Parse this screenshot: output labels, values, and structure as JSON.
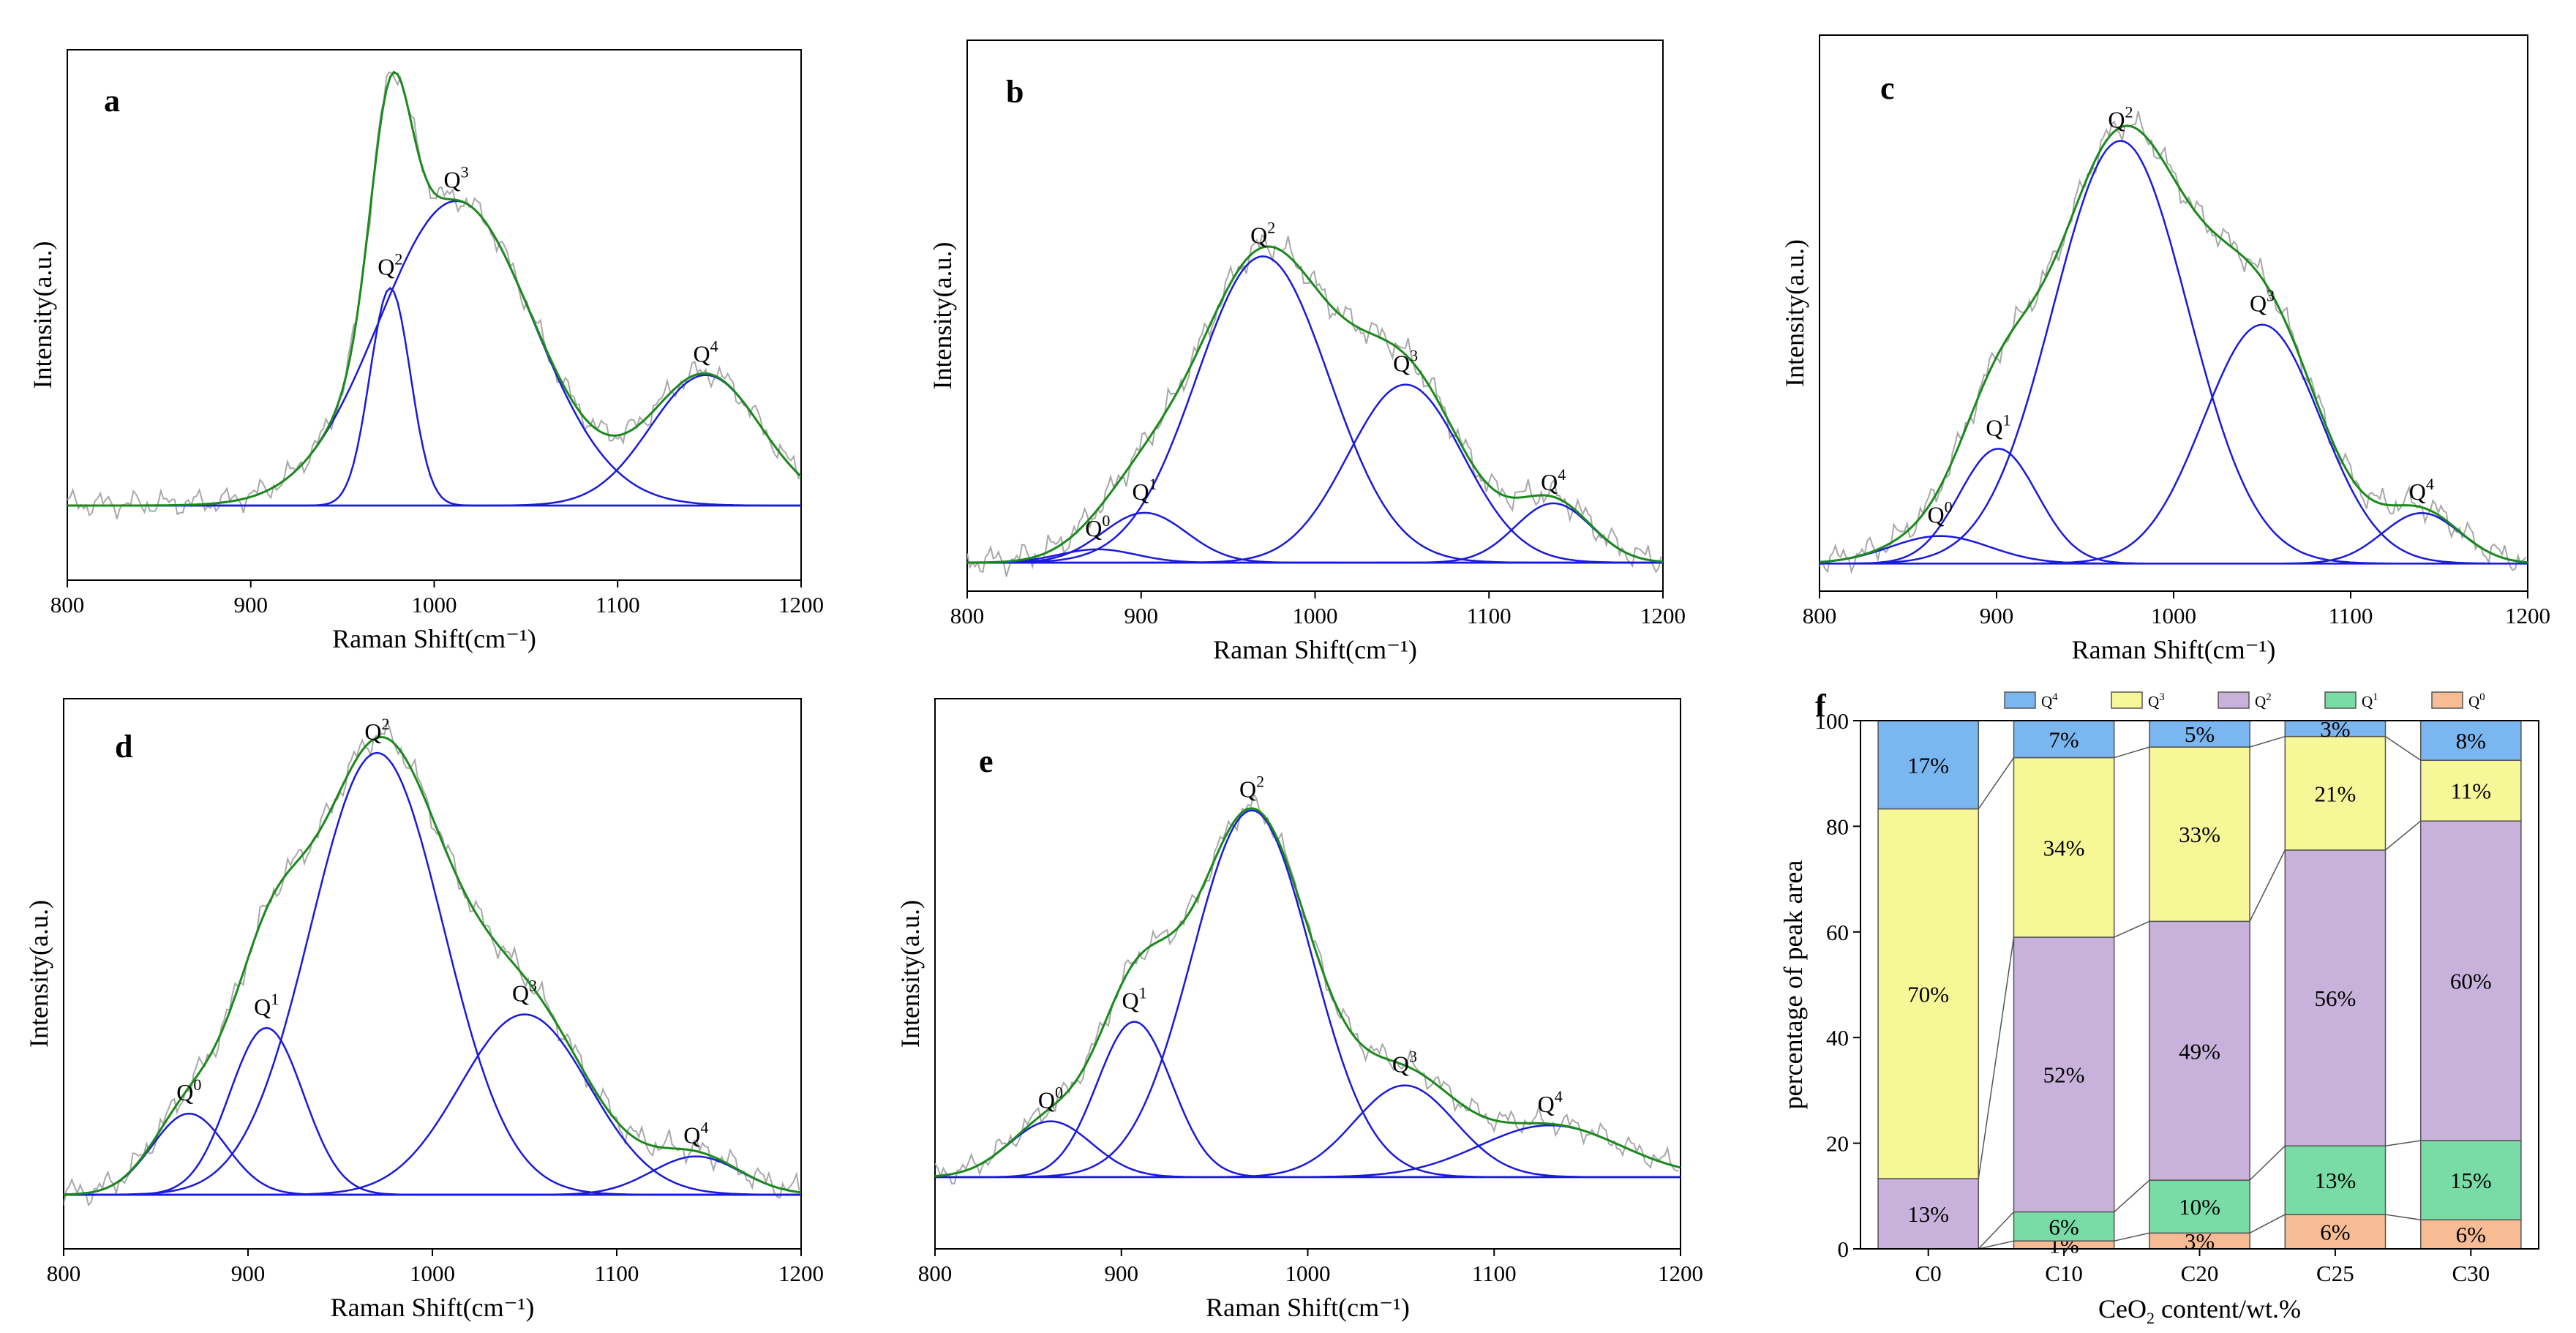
{
  "chart_data": [
    {
      "panel": "a",
      "type": "line",
      "xlabel": "Raman Shift(cm⁻¹)",
      "ylabel": "Intensity(a.u.)",
      "xlim": [
        800,
        1200
      ],
      "xticks": [
        "800",
        "900",
        "1000",
        "1100",
        "1200"
      ],
      "ylim": [
        -0.18,
        1.1
      ],
      "baseline": 0,
      "peaks": [
        {
          "label": "Q",
          "sup": "2",
          "center": 976,
          "height": 0.525,
          "sigma": 11
        },
        {
          "label": "Q",
          "sup": "3",
          "center": 1012,
          "height": 0.735,
          "sigma": 42
        },
        {
          "label": "Q",
          "sup": "4",
          "center": 1148,
          "height": 0.315,
          "sigma": 30
        }
      ],
      "fit_color": "#1a8a1a",
      "peak_color": "#1a1adb",
      "raw_color": "#a8a8a8"
    },
    {
      "panel": "b",
      "type": "line",
      "xlabel": "Raman Shift(cm⁻¹)",
      "ylabel": "Intensity(a.u.)",
      "xlim": [
        800,
        1200
      ],
      "xticks": [
        "800",
        "900",
        "1000",
        "1100",
        "1200"
      ],
      "ylim": [
        -0.06,
        1.1
      ],
      "baseline": 0,
      "peaks": [
        {
          "label": "Q",
          "sup": "0",
          "center": 875,
          "height": 0.028,
          "sigma": 22
        },
        {
          "label": "Q",
          "sup": "1",
          "center": 902,
          "height": 0.105,
          "sigma": 24
        },
        {
          "label": "Q",
          "sup": "2",
          "center": 970,
          "height": 0.645,
          "sigma": 38
        },
        {
          "label": "Q",
          "sup": "3",
          "center": 1052,
          "height": 0.375,
          "sigma": 33
        },
        {
          "label": "Q",
          "sup": "4",
          "center": 1137,
          "height": 0.125,
          "sigma": 22
        }
      ],
      "fit_color": "#1a8a1a",
      "peak_color": "#1a1adb",
      "raw_color": "#a8a8a8"
    },
    {
      "panel": "c",
      "type": "line",
      "xlabel": "Raman Shift(cm⁻¹)",
      "ylabel": "Intensity(a.u.)",
      "xlim": [
        800,
        1200
      ],
      "xticks": [
        "800",
        "900",
        "1000",
        "1100",
        "1200"
      ],
      "ylim": [
        -0.06,
        1.15
      ],
      "baseline": 0,
      "peaks": [
        {
          "label": "Q",
          "sup": "0",
          "center": 868,
          "height": 0.06,
          "sigma": 28
        },
        {
          "label": "Q",
          "sup": "1",
          "center": 901,
          "height": 0.25,
          "sigma": 22
        },
        {
          "label": "Q",
          "sup": "2",
          "center": 970,
          "height": 0.92,
          "sigma": 38
        },
        {
          "label": "Q",
          "sup": "3",
          "center": 1050,
          "height": 0.52,
          "sigma": 33
        },
        {
          "label": "Q",
          "sup": "4",
          "center": 1140,
          "height": 0.11,
          "sigma": 22
        }
      ],
      "fit_color": "#1a8a1a",
      "peak_color": "#1a1adb",
      "raw_color": "#a8a8a8"
    },
    {
      "panel": "d",
      "type": "line",
      "xlabel": "Raman Shift(cm⁻¹)",
      "ylabel": "Intensity(a.u.)",
      "xlim": [
        800,
        1200
      ],
      "xticks": [
        "800",
        "900",
        "1000",
        "1100",
        "1200"
      ],
      "ylim": [
        -0.12,
        1.1
      ],
      "baseline": 0,
      "peaks": [
        {
          "label": "Q",
          "sup": "0",
          "center": 868,
          "height": 0.18,
          "sigma": 20
        },
        {
          "label": "Q",
          "sup": "1",
          "center": 910,
          "height": 0.37,
          "sigma": 20
        },
        {
          "label": "Q",
          "sup": "2",
          "center": 970,
          "height": 0.98,
          "sigma": 36
        },
        {
          "label": "Q",
          "sup": "3",
          "center": 1050,
          "height": 0.4,
          "sigma": 35
        },
        {
          "label": "Q",
          "sup": "4",
          "center": 1143,
          "height": 0.085,
          "sigma": 24
        }
      ],
      "fit_color": "#1a8a1a",
      "peak_color": "#1a1adb",
      "raw_color": "#a8a8a8"
    },
    {
      "panel": "e",
      "type": "line",
      "xlabel": "Raman Shift(cm⁻¹)",
      "ylabel": "Intensity(a.u.)",
      "xlim": [
        800,
        1200
      ],
      "xticks": [
        "800",
        "900",
        "1000",
        "1100",
        "1200"
      ],
      "ylim": [
        -0.18,
        1.2
      ],
      "baseline": 0,
      "peaks": [
        {
          "label": "Q",
          "sup": "0",
          "center": 862,
          "height": 0.14,
          "sigma": 22
        },
        {
          "label": "Q",
          "sup": "1",
          "center": 907,
          "height": 0.39,
          "sigma": 20
        },
        {
          "label": "Q",
          "sup": "2",
          "center": 970,
          "height": 0.92,
          "sigma": 32
        },
        {
          "label": "Q",
          "sup": "3",
          "center": 1052,
          "height": 0.23,
          "sigma": 27
        },
        {
          "label": "Q",
          "sup": "4",
          "center": 1130,
          "height": 0.13,
          "sigma": 38
        }
      ],
      "fit_color": "#1a8a1a",
      "peak_color": "#1a1adb",
      "raw_color": "#a8a8a8"
    },
    {
      "panel": "f",
      "type": "bar",
      "stacked": true,
      "ylabel": "percentage of peak area",
      "xlabel": "CeO",
      "xlabel_sub": "2",
      "xlabel_tail": " content/wt.%",
      "ylim": [
        0,
        100
      ],
      "yticks": [
        "0",
        "20",
        "40",
        "60",
        "80",
        "100"
      ],
      "categories": [
        "C0",
        "C10",
        "C20",
        "C25",
        "C30"
      ],
      "legend": [
        {
          "key": "Q4",
          "base": "Q",
          "sup": "4",
          "color": "#7ab6ef"
        },
        {
          "key": "Q3",
          "base": "Q",
          "sup": "3",
          "color": "#f6f797"
        },
        {
          "key": "Q2",
          "base": "Q",
          "sup": "2",
          "color": "#c8b2dc"
        },
        {
          "key": "Q1",
          "base": "Q",
          "sup": "1",
          "color": "#79dca6"
        },
        {
          "key": "Q0",
          "base": "Q",
          "sup": "0",
          "color": "#f7bc94"
        }
      ],
      "stack_order": [
        "Q0",
        "Q1",
        "Q2",
        "Q3",
        "Q4"
      ],
      "series": [
        {
          "name": "Q0",
          "values": [
            0,
            1.5,
            3,
            6.5,
            5.5
          ],
          "labels": [
            "",
            "1%",
            "3%",
            "6%",
            "6%"
          ]
        },
        {
          "name": "Q1",
          "values": [
            0,
            5.5,
            10,
            13,
            15
          ],
          "labels": [
            "",
            "6%",
            "10%",
            "13%",
            "15%"
          ]
        },
        {
          "name": "Q2",
          "values": [
            13.3,
            52,
            49,
            56,
            60.5
          ],
          "labels": [
            "13%",
            "52%",
            "49%",
            "56%",
            "60%"
          ]
        },
        {
          "name": "Q3",
          "values": [
            70,
            34,
            33,
            21.5,
            11.5
          ],
          "labels": [
            "70%",
            "34%",
            "33%",
            "21%",
            "11%"
          ]
        },
        {
          "name": "Q4",
          "values": [
            16.7,
            7,
            5,
            3,
            7.5
          ],
          "labels": [
            "17%",
            "7%",
            "5%",
            "3%",
            "8%"
          ]
        }
      ]
    }
  ]
}
